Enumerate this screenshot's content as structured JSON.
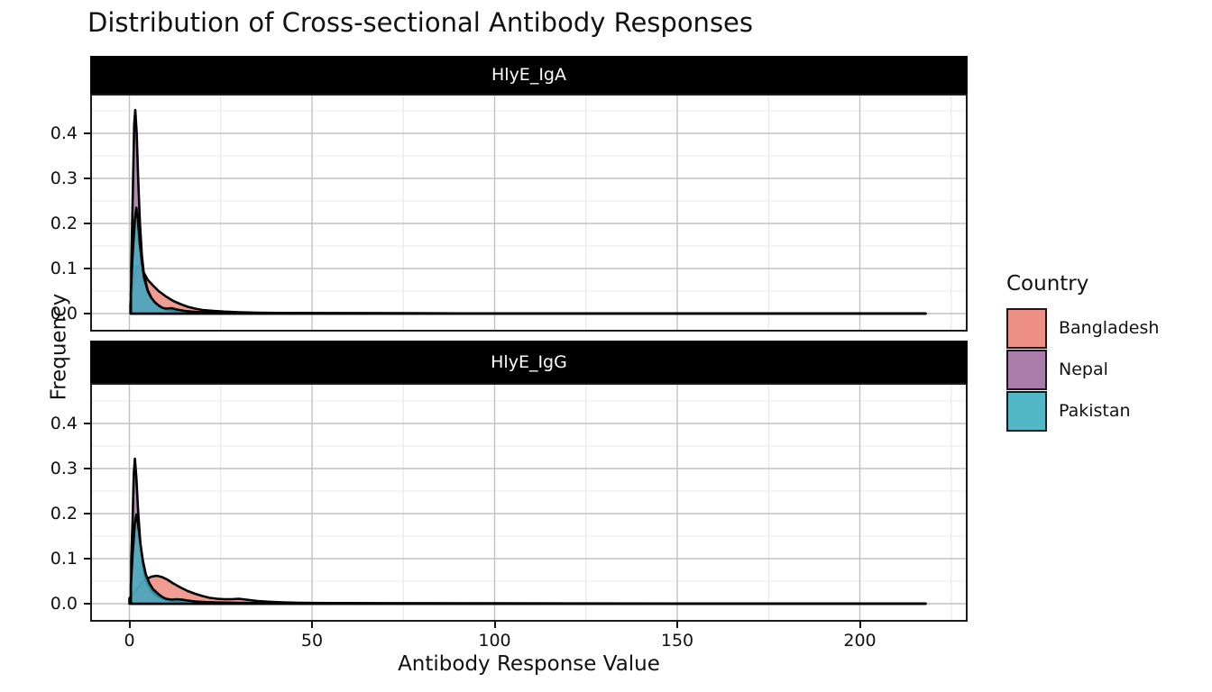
{
  "title": "Distribution of Cross-sectional Antibody Responses",
  "chart_data": {
    "type": "area",
    "title": "Distribution of Cross-sectional Antibody Responses",
    "xlabel": "Antibody Response Value",
    "ylabel": "Frequency",
    "x_ticks": [
      0,
      50,
      100,
      150,
      200
    ],
    "x_minor_ticks": [
      25,
      75,
      125,
      175,
      225
    ],
    "y_ticks": [
      "0.0",
      "0.1",
      "0.2",
      "0.3",
      "0.4"
    ],
    "y_tick_values": [
      0.0,
      0.1,
      0.2,
      0.3,
      0.4
    ],
    "y_minor_ticks": [
      0.05,
      0.15,
      0.25,
      0.35,
      0.45
    ],
    "xlim": [
      -10.7,
      229.5
    ],
    "ylim": [
      -0.045,
      0.49
    ],
    "grid": "on",
    "legend": {
      "title": "Country",
      "position": "right",
      "entries": [
        {
          "label": "Bangladesh",
          "color": "#EC8377"
        },
        {
          "label": "Nepal",
          "color": "#A16EA1"
        },
        {
          "label": "Pakistan",
          "color": "#40B0C2"
        }
      ]
    },
    "facets": [
      {
        "label": "HlyE_IgA",
        "series": [
          {
            "name": "Bangladesh",
            "color": "#EC8377",
            "points": [
              [
                0.3,
                0
              ],
              [
                0.3,
                0.02
              ],
              [
                1,
                0.065
              ],
              [
                2,
                0.105
              ],
              [
                3,
                0.1
              ],
              [
                4,
                0.09
              ],
              [
                5,
                0.075
              ],
              [
                6.5,
                0.062
              ],
              [
                8,
                0.05
              ],
              [
                10,
                0.038
              ],
              [
                12,
                0.028
              ],
              [
                14,
                0.021
              ],
              [
                16,
                0.015
              ],
              [
                18,
                0.011
              ],
              [
                20,
                0.008
              ],
              [
                23,
                0.006
              ],
              [
                26,
                0.0045
              ],
              [
                30,
                0.003
              ],
              [
                35,
                0.002
              ],
              [
                40,
                0.0015
              ],
              [
                50,
                0.001
              ],
              [
                60,
                0.0008
              ],
              [
                80,
                0.0006
              ],
              [
                100,
                0.0005
              ],
              [
                125,
                0.0004
              ],
              [
                150,
                0.0004
              ],
              [
                175,
                0.0003
              ],
              [
                200,
                0.0003
              ],
              [
                218,
                0.0002
              ],
              [
                218,
                0
              ]
            ]
          },
          {
            "name": "Nepal",
            "color": "#A16EA1",
            "points": [
              [
                0.5,
                0
              ],
              [
                0.5,
                0.1
              ],
              [
                0.9,
                0.25
              ],
              [
                1.3,
                0.42
              ],
              [
                1.6,
                0.452
              ],
              [
                2,
                0.4
              ],
              [
                2.4,
                0.3
              ],
              [
                2.9,
                0.2
              ],
              [
                3.4,
                0.13
              ],
              [
                4,
                0.085
              ],
              [
                5,
                0.052
              ],
              [
                6,
                0.035
              ],
              [
                7,
                0.024
              ],
              [
                8,
                0.017
              ],
              [
                10,
                0.009
              ],
              [
                12,
                0.006
              ],
              [
                15,
                0.004
              ],
              [
                20,
                0.0025
              ],
              [
                25,
                0.002
              ],
              [
                30,
                0.0015
              ],
              [
                40,
                0.001
              ],
              [
                60,
                0.0007
              ],
              [
                100,
                0.0005
              ],
              [
                150,
                0.0004
              ],
              [
                200,
                0.0003
              ],
              [
                218,
                0.0002
              ],
              [
                218,
                0
              ]
            ]
          },
          {
            "name": "Pakistan",
            "color": "#40B0C2",
            "points": [
              [
                0.4,
                0
              ],
              [
                0.4,
                0.045
              ],
              [
                0.9,
                0.13
              ],
              [
                1.5,
                0.21
              ],
              [
                1.9,
                0.235
              ],
              [
                2.3,
                0.21
              ],
              [
                2.8,
                0.16
              ],
              [
                3.4,
                0.115
              ],
              [
                4,
                0.08
              ],
              [
                5,
                0.05
              ],
              [
                6,
                0.035
              ],
              [
                7,
                0.025
              ],
              [
                8,
                0.018
              ],
              [
                9,
                0.013
              ],
              [
                10,
                0.011
              ],
              [
                11.5,
                0.012
              ],
              [
                13,
                0.009
              ],
              [
                15,
                0.006
              ],
              [
                17,
                0.0045
              ],
              [
                20,
                0.003
              ],
              [
                25,
                0.002
              ],
              [
                30,
                0.0015
              ],
              [
                40,
                0.001
              ],
              [
                60,
                0.0007
              ],
              [
                100,
                0.0005
              ],
              [
                150,
                0.0004
              ],
              [
                200,
                0.0003
              ],
              [
                218,
                0.0002
              ],
              [
                218,
                0
              ]
            ]
          }
        ]
      },
      {
        "label": "HlyE_IgG",
        "series": [
          {
            "name": "Bangladesh",
            "color": "#EC8377",
            "points": [
              [
                0,
                0
              ],
              [
                0,
                0.012
              ],
              [
                1,
                0.022
              ],
              [
                2,
                0.032
              ],
              [
                3,
                0.042
              ],
              [
                4,
                0.05
              ],
              [
                5,
                0.056
              ],
              [
                6,
                0.06
              ],
              [
                7.5,
                0.062
              ],
              [
                9,
                0.059
              ],
              [
                10.5,
                0.053
              ],
              [
                12,
                0.045
              ],
              [
                14,
                0.036
              ],
              [
                16,
                0.028
              ],
              [
                18,
                0.022
              ],
              [
                20,
                0.017
              ],
              [
                22,
                0.013
              ],
              [
                24,
                0.011
              ],
              [
                26,
                0.01
              ],
              [
                28,
                0.01
              ],
              [
                30,
                0.011
              ],
              [
                32,
                0.009
              ],
              [
                35,
                0.006
              ],
              [
                38,
                0.0045
              ],
              [
                42,
                0.003
              ],
              [
                47,
                0.002
              ],
              [
                55,
                0.0015
              ],
              [
                70,
                0.001
              ],
              [
                90,
                0.0008
              ],
              [
                120,
                0.0006
              ],
              [
                150,
                0.0005
              ],
              [
                180,
                0.0004
              ],
              [
                218,
                0.0003
              ],
              [
                218,
                0
              ]
            ]
          },
          {
            "name": "Nepal",
            "color": "#A16EA1",
            "points": [
              [
                0.5,
                0
              ],
              [
                0.5,
                0.095
              ],
              [
                0.9,
                0.19
              ],
              [
                1.2,
                0.29
              ],
              [
                1.5,
                0.322
              ],
              [
                1.9,
                0.28
              ],
              [
                2.4,
                0.205
              ],
              [
                3,
                0.135
              ],
              [
                3.6,
                0.09
              ],
              [
                4.3,
                0.06
              ],
              [
                5,
                0.043
              ],
              [
                6,
                0.03
              ],
              [
                7,
                0.021
              ],
              [
                8,
                0.015
              ],
              [
                10,
                0.009
              ],
              [
                12,
                0.006
              ],
              [
                15,
                0.004
              ],
              [
                20,
                0.0025
              ],
              [
                30,
                0.0015
              ],
              [
                50,
                0.001
              ],
              [
                100,
                0.0006
              ],
              [
                150,
                0.0004
              ],
              [
                200,
                0.0003
              ],
              [
                218,
                0.0002
              ],
              [
                218,
                0
              ]
            ]
          },
          {
            "name": "Pakistan",
            "color": "#40B0C2",
            "points": [
              [
                0.4,
                0
              ],
              [
                0.4,
                0.04
              ],
              [
                0.9,
                0.11
              ],
              [
                1.5,
                0.18
              ],
              [
                1.9,
                0.198
              ],
              [
                2.4,
                0.175
              ],
              [
                3,
                0.135
              ],
              [
                3.7,
                0.095
              ],
              [
                4.5,
                0.065
              ],
              [
                5.5,
                0.045
              ],
              [
                6.5,
                0.032
              ],
              [
                8,
                0.021
              ],
              [
                9,
                0.015
              ],
              [
                10,
                0.011
              ],
              [
                11.5,
                0.009
              ],
              [
                13,
                0.01
              ],
              [
                14.5,
                0.009
              ],
              [
                16,
                0.007
              ],
              [
                18,
                0.005
              ],
              [
                20,
                0.004
              ],
              [
                23,
                0.003
              ],
              [
                26,
                0.0025
              ],
              [
                30,
                0.002
              ],
              [
                35,
                0.0015
              ],
              [
                40,
                0.0012
              ],
              [
                50,
                0.001
              ],
              [
                70,
                0.0007
              ],
              [
                100,
                0.0005
              ],
              [
                150,
                0.0004
              ],
              [
                200,
                0.0003
              ],
              [
                218,
                0.0002
              ],
              [
                218,
                0
              ]
            ]
          }
        ]
      }
    ]
  },
  "style": {
    "strip_bg": "#000000",
    "strip_text": "#FFFFFF",
    "grid_major": "#C2C2C2",
    "grid_minor": "#E8E8E8",
    "panel_border": "#1A1A1A",
    "outline": "#000000",
    "fill_alpha": 0.8
  },
  "layout_note": ""
}
